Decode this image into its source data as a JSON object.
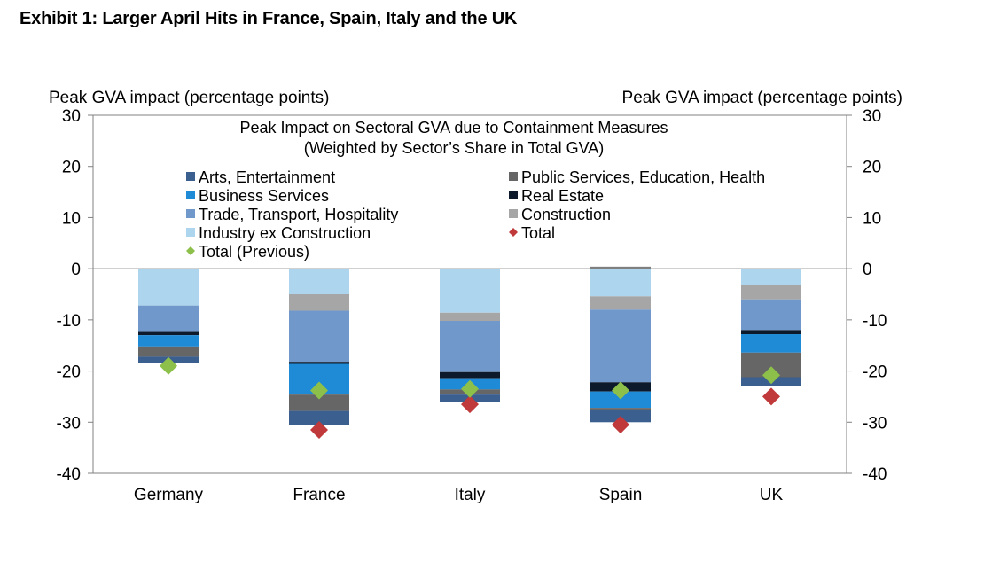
{
  "exhibit_title": "Exhibit 1: Larger April Hits in France, Spain, Italy and the UK",
  "chart_data": {
    "type": "bar",
    "stacked": true,
    "title": "Peak Impact on Sectoral GVA due to Containment Measures",
    "subtitle": "(Weighted by Sector’s Share in Total GVA)",
    "ylabel_left": "Peak GVA impact (percentage points)",
    "ylabel_right": "Peak GVA impact (percentage points)",
    "ylim": [
      -40,
      30
    ],
    "yticks": [
      30,
      20,
      10,
      0,
      -10,
      -20,
      -30,
      -40
    ],
    "grid": false,
    "legend_position": "top",
    "categories": [
      "Germany",
      "France",
      "Italy",
      "Spain",
      "UK"
    ],
    "series": [
      {
        "name": "Industry ex Construction",
        "color": "#aed5ee",
        "values": [
          -7.2,
          -5.0,
          -8.6,
          -5.4,
          -3.2
        ]
      },
      {
        "name": "Construction",
        "color": "#a6a6a6",
        "values": [
          0.0,
          -3.2,
          -1.6,
          -2.6,
          -2.8
        ]
      },
      {
        "name": "Trade, Transport, Hospitality",
        "color": "#7098cb",
        "values": [
          -5.0,
          -10.0,
          -10.0,
          -14.2,
          -6.0
        ]
      },
      {
        "name": "Real Estate",
        "color": "#0d1a2b",
        "values": [
          -0.8,
          -0.4,
          -1.2,
          -1.8,
          -0.8
        ]
      },
      {
        "name": "Business Services",
        "color": "#1f8ad6",
        "values": [
          -2.2,
          -6.0,
          -2.2,
          -3.2,
          -3.6
        ]
      },
      {
        "name": "Public Services, Education, Health",
        "color": "#666666",
        "values": [
          -2.0,
          -3.2,
          -1.0,
          -0.4,
          -4.8
        ]
      },
      {
        "name": "Arts, Entertainment",
        "color": "#3b5f8f",
        "values": [
          -1.2,
          -2.8,
          -1.4,
          -2.4,
          -1.8
        ]
      }
    ],
    "top_slivers": [
      {
        "category": "Spain",
        "name": "Construction",
        "color": "#7f7f7f",
        "values_range": [
          0,
          0.4
        ]
      }
    ],
    "markers": [
      {
        "name": "Total",
        "shape": "diamond",
        "color": "#c0393b",
        "values": [
          null,
          -31.5,
          -26.5,
          -30.5,
          -25.0
        ]
      },
      {
        "name": "Total (Previous)",
        "shape": "diamond",
        "color": "#8dc04a",
        "values": [
          -19.0,
          -23.8,
          -23.5,
          -23.8,
          -20.8
        ]
      }
    ],
    "legend": [
      {
        "label": "Arts, Entertainment",
        "color": "#3b5f8f",
        "shape": "square"
      },
      {
        "label": "Public Services, Education, Health",
        "color": "#666666",
        "shape": "square"
      },
      {
        "label": "Business Services",
        "color": "#1f8ad6",
        "shape": "square"
      },
      {
        "label": "Real Estate",
        "color": "#0d1a2b",
        "shape": "square"
      },
      {
        "label": "Trade, Transport, Hospitality",
        "color": "#7098cb",
        "shape": "square"
      },
      {
        "label": "Construction",
        "color": "#a6a6a6",
        "shape": "square"
      },
      {
        "label": "Industry ex Construction",
        "color": "#aed5ee",
        "shape": "square"
      },
      {
        "label": "Total",
        "color": "#c0393b",
        "shape": "diamond"
      },
      {
        "label": "Total (Previous)",
        "color": "#8dc04a",
        "shape": "diamond"
      }
    ]
  }
}
